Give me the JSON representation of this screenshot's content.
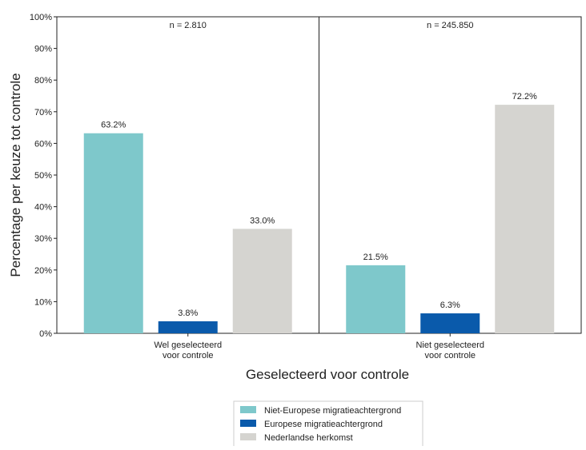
{
  "chart_data": {
    "type": "bar",
    "xlabel": "Geselecteerd voor controle",
    "ylabel": "Percentage per keuze tot controle",
    "ylim": [
      0,
      100
    ],
    "yticks": [
      "0%",
      "10%",
      "20%",
      "30%",
      "40%",
      "50%",
      "60%",
      "70%",
      "80%",
      "90%",
      "100%"
    ],
    "categories": [
      {
        "line1": "Wel geselecteerd",
        "line2": "voor controle",
        "n": "n = 2.810"
      },
      {
        "line1": "Niet geselecteerd",
        "line2": "voor controle",
        "n": "n = 245.850"
      }
    ],
    "series": [
      {
        "name": "Niet-Europese migratieachtergrond",
        "color": "#7ec8cb",
        "values": [
          63.2,
          21.5
        ],
        "labels": [
          "63.2%",
          "21.5%"
        ]
      },
      {
        "name": "Europese migratieachtergrond",
        "color": "#0a5aab",
        "values": [
          3.8,
          6.3
        ],
        "labels": [
          "3.8%",
          "6.3%"
        ]
      },
      {
        "name": "Nederlandse herkomst",
        "color": "#d5d4d0",
        "values": [
          33.0,
          72.2
        ],
        "labels": [
          "33.0%",
          "72.2%"
        ]
      }
    ],
    "legend_position": "bottom-center",
    "grid": false
  }
}
